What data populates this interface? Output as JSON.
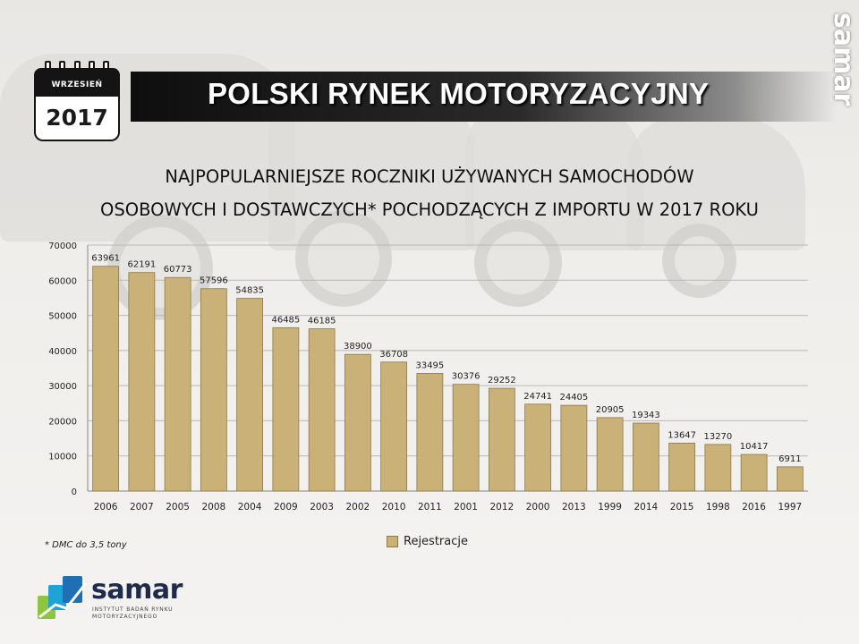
{
  "header": {
    "month": "WRZESIEŃ",
    "year": "2017",
    "banner_title": "POLSKI RYNEK MOTORYZACYJNY",
    "brand_vertical": "samar"
  },
  "title_line1": "NAJPOPULARNIEJSZE ROCZNIKI UŻYWANYCH SAMOCHODÓW",
  "title_line2": "OSOBOWYCH I DOSTAWCZYCH* POCHODZĄCYCH Z IMPORTU W 2017 ROKU",
  "footnote": "* DMC do 3,5 tony",
  "legend_label": "Rejestracje",
  "logo": {
    "name": "samar",
    "subtitle": "INSTYTUT BADAŃ RYNKU MOTORYZACYJNEGO"
  },
  "colors": {
    "bar": "#c9b178",
    "bar_stroke": "#8c7a48",
    "grid": "#b9b9b9"
  },
  "chart_data": {
    "type": "bar",
    "categories": [
      "2006",
      "2007",
      "2005",
      "2008",
      "2004",
      "2009",
      "2003",
      "2002",
      "2010",
      "2011",
      "2001",
      "2012",
      "2000",
      "2013",
      "1999",
      "2014",
      "2015",
      "1998",
      "2016",
      "1997"
    ],
    "series": [
      {
        "name": "Rejestracje",
        "values": [
          63961,
          62191,
          60773,
          57596,
          54835,
          46485,
          46185,
          38900,
          36708,
          33495,
          30376,
          29252,
          24741,
          24405,
          20905,
          19343,
          13647,
          13270,
          10417,
          6911
        ]
      }
    ],
    "ylim": [
      0,
      70000
    ],
    "yticks": [
      0,
      10000,
      20000,
      30000,
      40000,
      50000,
      60000,
      70000
    ],
    "grid": true,
    "data_labels": true,
    "legend_position": "bottom"
  }
}
